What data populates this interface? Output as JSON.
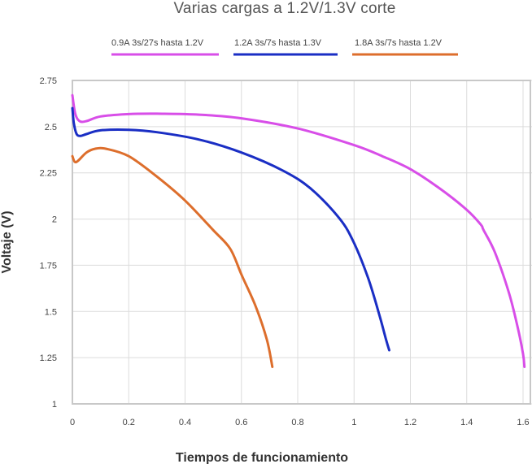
{
  "chart_data": {
    "type": "line",
    "title": "Varias cargas a 1.2V/1.3V corte",
    "xlabel": "Tiempos de funcionamiento",
    "ylabel": "Voltaje (V)",
    "xlim": [
      0,
      1.6
    ],
    "ylim": [
      1,
      2.75
    ],
    "x_ticks": [
      0,
      0.2,
      0.4,
      0.6,
      0.8,
      1,
      1.2,
      1.4,
      1.6
    ],
    "x_tick_labels": [
      "0",
      "0.2",
      "0.4",
      "0.6",
      "0.8",
      "1",
      "1.2",
      "1.4",
      "1.6"
    ],
    "y_ticks": [
      1,
      1.25,
      1.5,
      1.75,
      2,
      2.25,
      2.5,
      2.75
    ],
    "y_tick_labels": [
      "1",
      "1.25",
      "1.5",
      "1.75",
      "2",
      "2.25",
      "2.5",
      "2.75"
    ],
    "grid": true,
    "legend_position": "top",
    "series": [
      {
        "name": "0.9A 3s/27s hasta 1.2V",
        "color": "#d84ee8",
        "points": [
          [
            0,
            2.67
          ],
          [
            0.01,
            2.57
          ],
          [
            0.025,
            2.53
          ],
          [
            0.05,
            2.53
          ],
          [
            0.1,
            2.555
          ],
          [
            0.2,
            2.568
          ],
          [
            0.3,
            2.57
          ],
          [
            0.45,
            2.565
          ],
          [
            0.6,
            2.545
          ],
          [
            0.8,
            2.49
          ],
          [
            1.0,
            2.4
          ],
          [
            1.1,
            2.34
          ],
          [
            1.2,
            2.27
          ],
          [
            1.3,
            2.17
          ],
          [
            1.4,
            2.05
          ],
          [
            1.45,
            1.97
          ],
          [
            1.46,
            1.94
          ],
          [
            1.5,
            1.82
          ],
          [
            1.55,
            1.6
          ],
          [
            1.58,
            1.42
          ],
          [
            1.6,
            1.27
          ],
          [
            1.605,
            1.2
          ]
        ]
      },
      {
        "name": "1.2A 3s/7s hasta 1.3V",
        "color": "#1a2ec4",
        "points": [
          [
            0,
            2.6
          ],
          [
            0.005,
            2.52
          ],
          [
            0.015,
            2.46
          ],
          [
            0.03,
            2.45
          ],
          [
            0.05,
            2.46
          ],
          [
            0.1,
            2.48
          ],
          [
            0.2,
            2.483
          ],
          [
            0.3,
            2.47
          ],
          [
            0.45,
            2.43
          ],
          [
            0.6,
            2.36
          ],
          [
            0.75,
            2.26
          ],
          [
            0.85,
            2.16
          ],
          [
            0.95,
            2.0
          ],
          [
            1.0,
            1.87
          ],
          [
            1.05,
            1.68
          ],
          [
            1.09,
            1.48
          ],
          [
            1.115,
            1.34
          ],
          [
            1.125,
            1.29
          ]
        ]
      },
      {
        "name": "1.8A 3s/7s hasta 1.2V",
        "color": "#dd6e2c",
        "points": [
          [
            0,
            2.34
          ],
          [
            0.008,
            2.31
          ],
          [
            0.02,
            2.315
          ],
          [
            0.05,
            2.36
          ],
          [
            0.08,
            2.38
          ],
          [
            0.12,
            2.38
          ],
          [
            0.2,
            2.34
          ],
          [
            0.3,
            2.23
          ],
          [
            0.4,
            2.1
          ],
          [
            0.5,
            1.94
          ],
          [
            0.56,
            1.84
          ],
          [
            0.6,
            1.7
          ],
          [
            0.65,
            1.53
          ],
          [
            0.69,
            1.35
          ],
          [
            0.71,
            1.2
          ]
        ]
      }
    ]
  }
}
